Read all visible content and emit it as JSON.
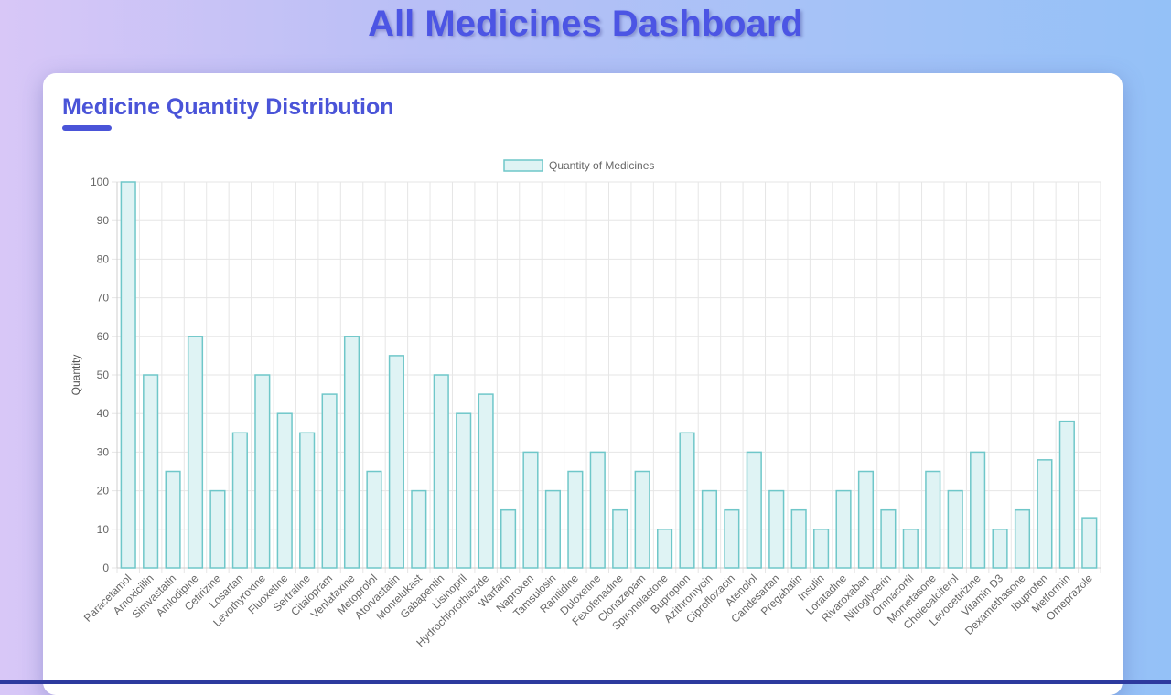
{
  "page": {
    "title": "All Medicines Dashboard"
  },
  "card": {
    "title": "Medicine Quantity Distribution"
  },
  "colors": {
    "title": "#4c55e4",
    "bar_fill": "#dff3f4",
    "bar_stroke": "#6fc7c9",
    "grid": "#e6e6e6"
  },
  "chart_data": {
    "type": "bar",
    "ylabel": "Quantity",
    "xlabel": "",
    "ylim": [
      0,
      100
    ],
    "yticks": [
      0,
      10,
      20,
      30,
      40,
      50,
      60,
      70,
      80,
      90,
      100
    ],
    "grid": true,
    "legend_position": "top-center",
    "categories": [
      "Paracetamol",
      "Amoxicillin",
      "Simvastatin",
      "Amlodipine",
      "Cetirizine",
      "Losartan",
      "Levothyroxine",
      "Fluoxetine",
      "Sertraline",
      "Citalopram",
      "Venlafaxine",
      "Metoprolol",
      "Atorvastatin",
      "Montelukast",
      "Gabapentin",
      "Lisinopril",
      "Hydrochlorothiazide",
      "Warfarin",
      "Naproxen",
      "Tamsulosin",
      "Ranitidine",
      "Duloxetine",
      "Fexofenadine",
      "Clonazepam",
      "Spironolactone",
      "Bupropion",
      "Azithromycin",
      "Ciprofloxacin",
      "Atenolol",
      "Candesartan",
      "Pregabalin",
      "Insulin",
      "Loratadine",
      "Rivaroxaban",
      "Nitroglycerin",
      "Omnacortil",
      "Mometasone",
      "Cholecalciferol",
      "Levocetirizine",
      "Vitamin D3",
      "Dexamethasone",
      "Ibuprofen",
      "Metformin",
      "Omeprazole"
    ],
    "series": [
      {
        "name": "Quantity of Medicines",
        "values": [
          100,
          50,
          25,
          60,
          20,
          35,
          50,
          40,
          35,
          45,
          60,
          25,
          55,
          20,
          50,
          40,
          45,
          15,
          30,
          20,
          25,
          30,
          15,
          25,
          10,
          35,
          20,
          15,
          30,
          20,
          15,
          10,
          20,
          25,
          15,
          10,
          25,
          20,
          30,
          10,
          15,
          28,
          38,
          13
        ]
      }
    ]
  }
}
